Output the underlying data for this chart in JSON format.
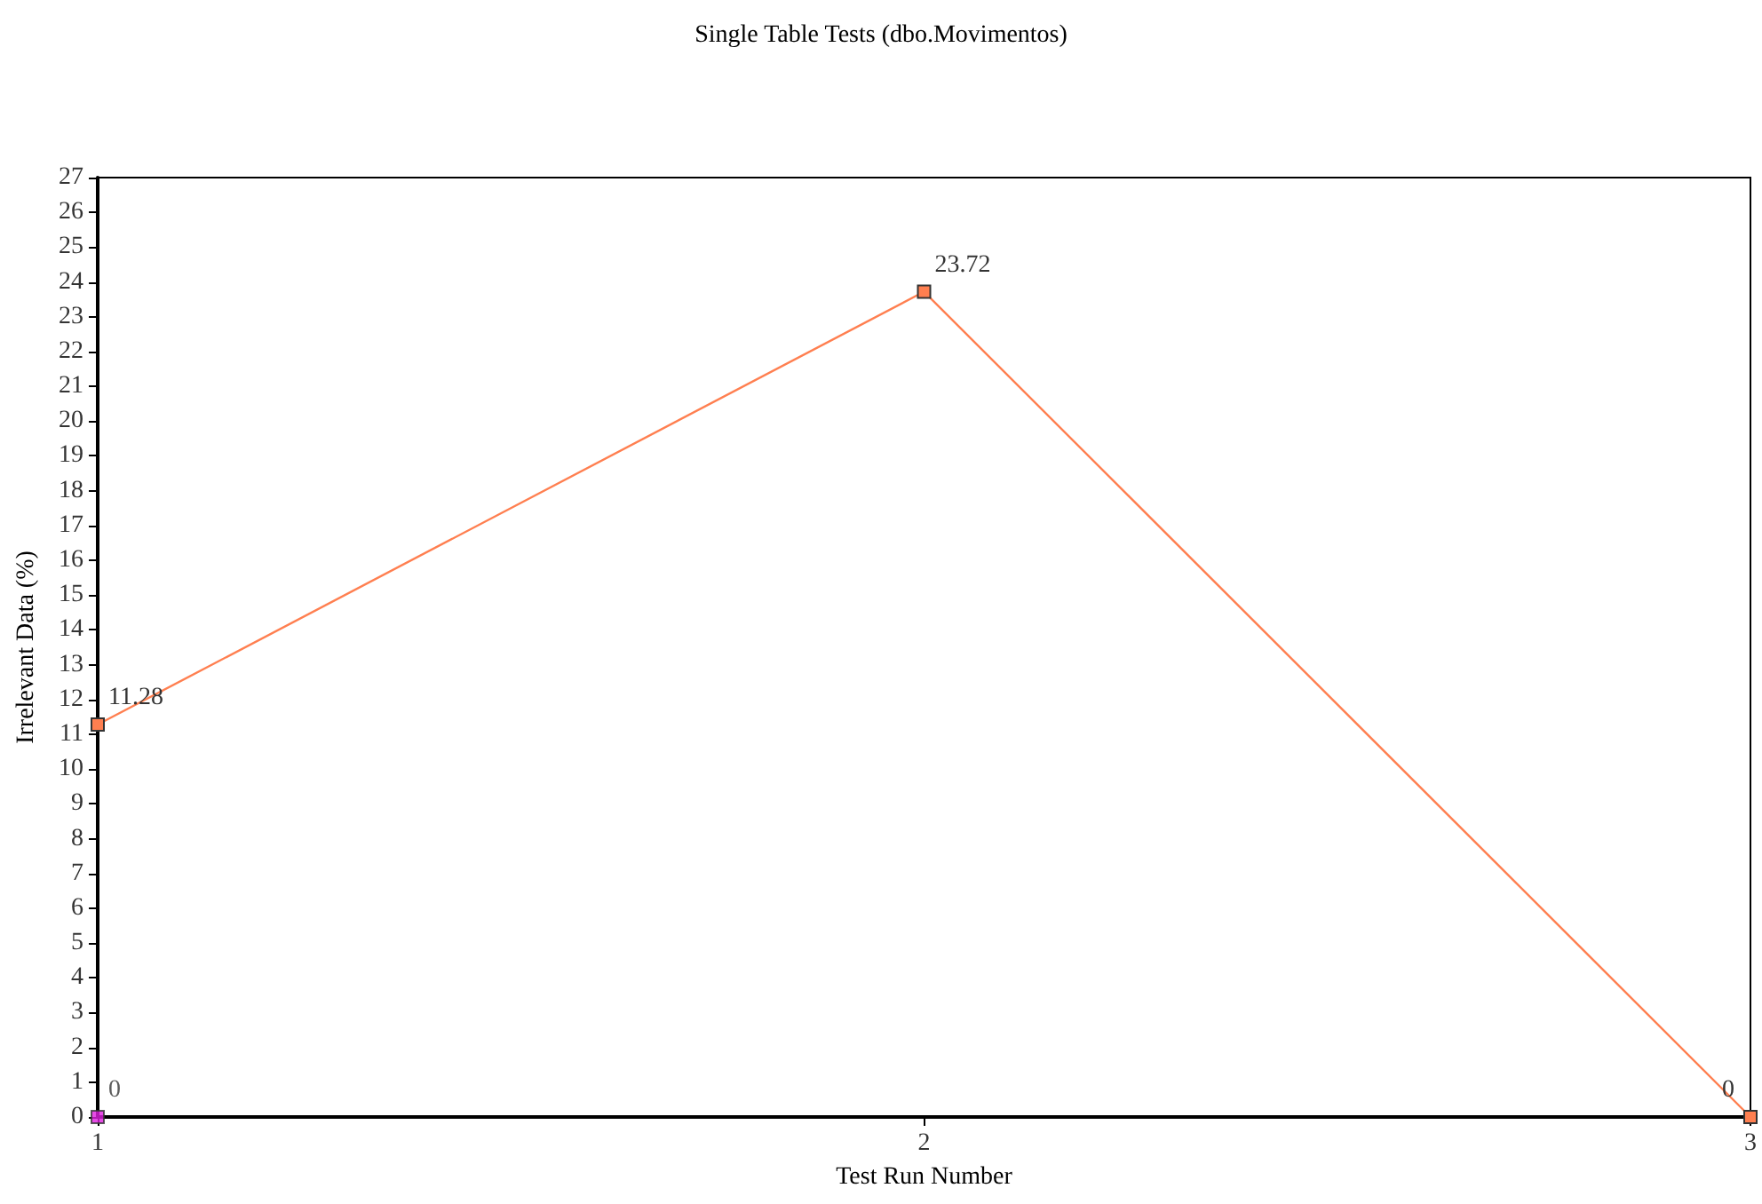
{
  "chart_data": {
    "type": "line",
    "title": "Single Table Tests (dbo.Movimentos)",
    "xlabel": "Test Run Number",
    "ylabel": "Irrelevant Data (%)",
    "x": [
      1,
      2,
      3
    ],
    "series": [
      {
        "color": "#ff7f50",
        "values": [
          11.28,
          23.72,
          0
        ]
      },
      {
        "type": "scatter",
        "color": "#e020e0",
        "x": [
          1
        ],
        "values": [
          0
        ]
      }
    ],
    "xlim": [
      1,
      3
    ],
    "xticks": [
      1,
      2,
      3
    ],
    "ylim": [
      0,
      27
    ],
    "yticks": [
      0,
      1,
      2,
      3,
      4,
      5,
      6,
      7,
      8,
      9,
      10,
      11,
      12,
      13,
      14,
      15,
      16,
      17,
      18,
      19,
      20,
      21,
      22,
      23,
      24,
      25,
      26,
      27
    ],
    "grid": false,
    "marker": "square",
    "line_style": "solid",
    "data_labels": true
  }
}
